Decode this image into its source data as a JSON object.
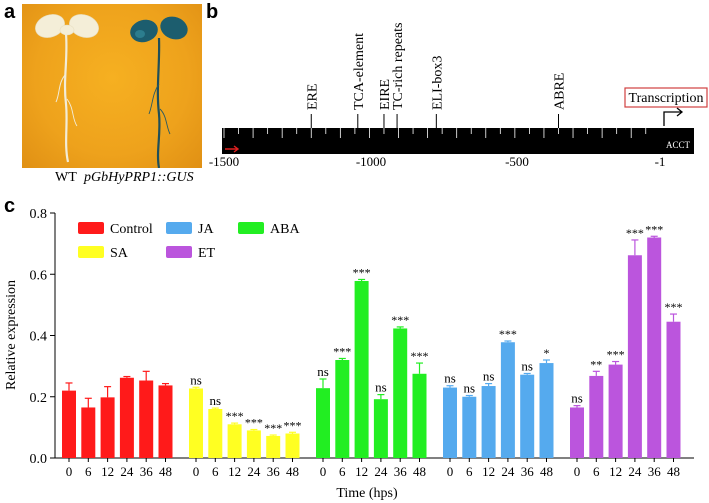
{
  "panel_a": {
    "letter": "a",
    "captions": {
      "wt": "WT",
      "transgenic": "pGbHyPRP1::GUS"
    }
  },
  "panel_b": {
    "letter": "b",
    "elements": [
      {
        "label": "ERE",
        "position": -1200
      },
      {
        "label": "TCA-element",
        "position": -1040
      },
      {
        "label": "EIRE",
        "position": -950
      },
      {
        "label": "TC-rich repeats",
        "position": -905
      },
      {
        "label": "ELI-box3",
        "position": -770
      },
      {
        "label": "ABRE",
        "position": -350
      }
    ],
    "axis_ticks": [
      "-1500",
      "-1000",
      "-500",
      "-1"
    ],
    "transcription_label": "Transcription",
    "start_label": "ACCT"
  },
  "chart_data": {
    "type": "bar",
    "panel_letter": "c",
    "ylabel": "Relative expression",
    "xlabel": "Time (hps)",
    "ylim": [
      0,
      0.8
    ],
    "yticks": [
      "0.0",
      "0.2",
      "0.4",
      "0.6",
      "0.8"
    ],
    "time_points": [
      "0",
      "6",
      "12",
      "24",
      "36",
      "48"
    ],
    "series": [
      {
        "name": "Control",
        "color": "#ff1a1a",
        "values": [
          0.22,
          0.165,
          0.198,
          0.262,
          0.253,
          0.237
        ],
        "errors": [
          0.025,
          0.03,
          0.035,
          0.004,
          0.03,
          0.006
        ],
        "sig": [
          "",
          "",
          "",
          "",
          "",
          ""
        ]
      },
      {
        "name": "SA",
        "color": "#ffff22",
        "values": [
          0.227,
          0.16,
          0.11,
          0.09,
          0.072,
          0.08
        ],
        "errors": [
          0.004,
          0.003,
          0.004,
          0.003,
          0.003,
          0.004
        ],
        "sig": [
          "ns",
          "ns",
          "***",
          "***",
          "***",
          "***"
        ]
      },
      {
        "name": "ABA",
        "color": "#22ee22",
        "values": [
          0.228,
          0.32,
          0.578,
          0.192,
          0.423,
          0.275
        ],
        "errors": [
          0.03,
          0.005,
          0.005,
          0.015,
          0.005,
          0.035
        ],
        "sig": [
          "ns",
          "***",
          "***",
          "ns",
          "***",
          "***"
        ]
      },
      {
        "name": "JA",
        "color": "#55aaee",
        "values": [
          0.23,
          0.2,
          0.235,
          0.378,
          0.272,
          0.31
        ],
        "errors": [
          0.006,
          0.004,
          0.008,
          0.004,
          0.004,
          0.01
        ],
        "sig": [
          "ns",
          "ns",
          "ns",
          "***",
          "ns",
          "*"
        ]
      },
      {
        "name": "ET",
        "color": "#bb55dd",
        "values": [
          0.165,
          0.268,
          0.305,
          0.662,
          0.72,
          0.445
        ],
        "errors": [
          0.006,
          0.015,
          0.01,
          0.05,
          0.004,
          0.025
        ],
        "sig": [
          "ns",
          "**",
          "***",
          "***",
          "***",
          "***"
        ]
      }
    ],
    "legend": [
      "Control",
      "JA",
      "ABA",
      "SA",
      "ET"
    ]
  }
}
